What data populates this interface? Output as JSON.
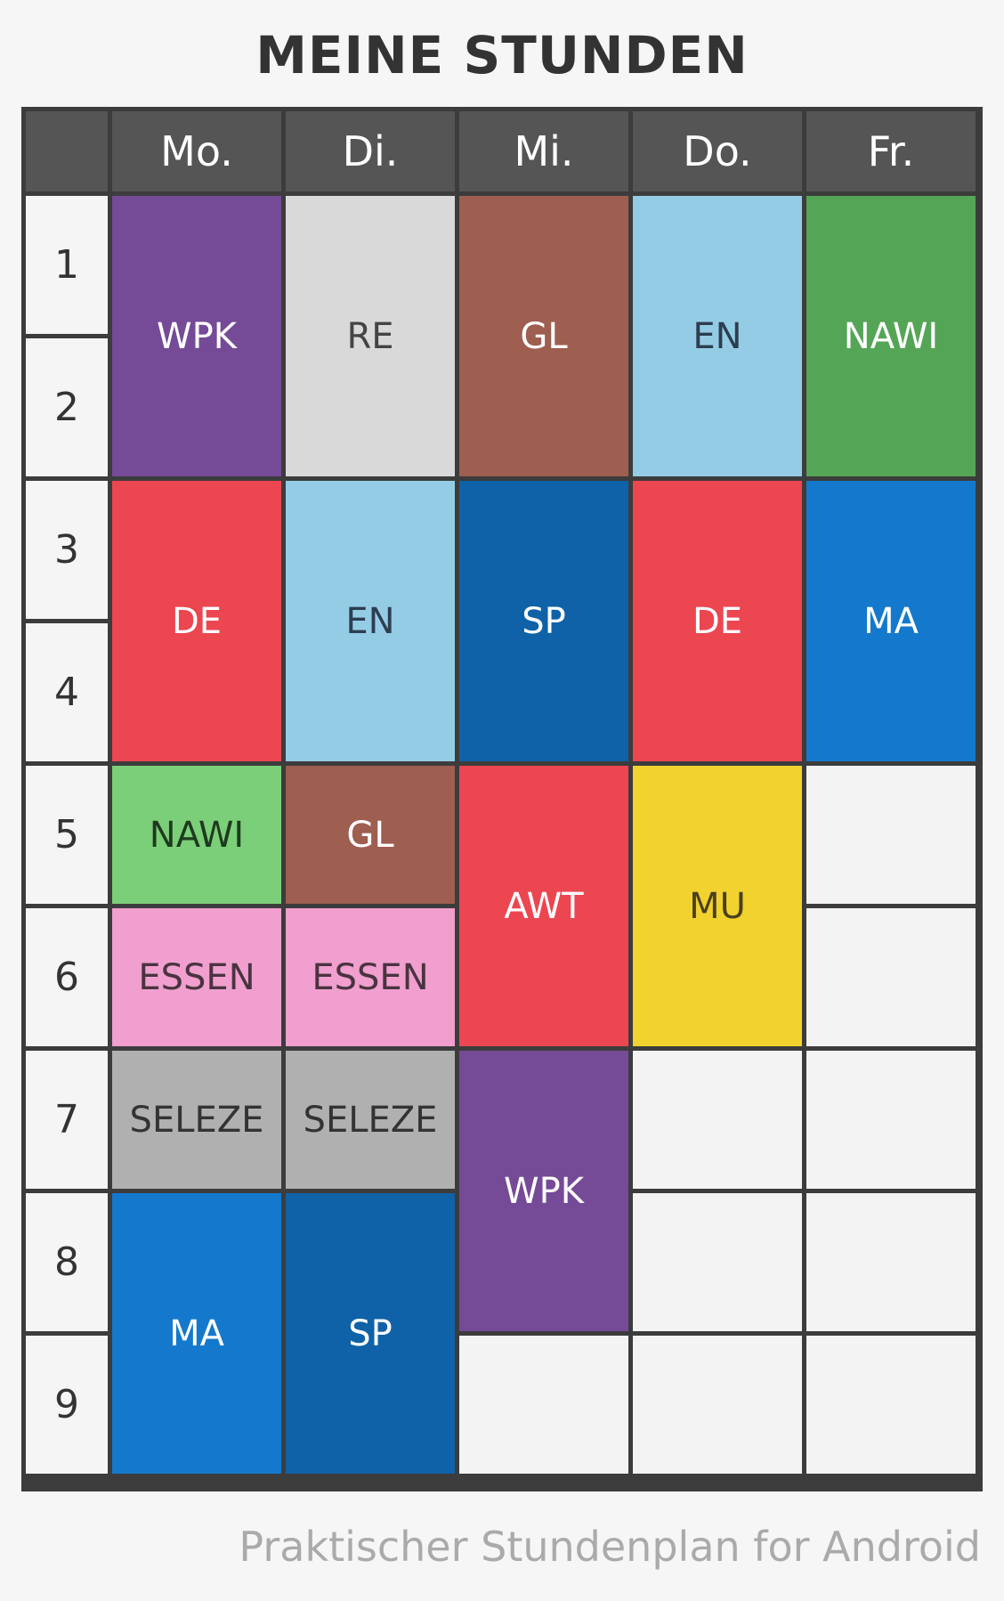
{
  "title": "MEINE STUNDEN",
  "footer": "Praktischer Stundenplan for Android",
  "days": [
    "Mo.",
    "Di.",
    "Mi.",
    "Do.",
    "Fr."
  ],
  "periods": [
    "1",
    "2",
    "3",
    "4",
    "5",
    "6",
    "7",
    "8",
    "9"
  ],
  "colors": {
    "header_bg": "#555555",
    "grid_line": "#3c3c3c",
    "empty_cell": "#f3f3f3"
  },
  "lessons": [
    {
      "subject": "WPK",
      "day": 0,
      "start": 1,
      "span": 2,
      "bg": "#754a97",
      "fg": "#ffffff"
    },
    {
      "subject": "RE",
      "day": 1,
      "start": 1,
      "span": 2,
      "bg": "#d9d9d9",
      "fg": "#444444"
    },
    {
      "subject": "GL",
      "day": 2,
      "start": 1,
      "span": 2,
      "bg": "#9e5e50",
      "fg": "#ffffff"
    },
    {
      "subject": "EN",
      "day": 3,
      "start": 1,
      "span": 2,
      "bg": "#95cce5",
      "fg": "#2c3e50"
    },
    {
      "subject": "NAWI",
      "day": 4,
      "start": 1,
      "span": 2,
      "bg": "#55a556",
      "fg": "#ffffff"
    },
    {
      "subject": "DE",
      "day": 0,
      "start": 3,
      "span": 2,
      "bg": "#ec4651",
      "fg": "#ffffff"
    },
    {
      "subject": "EN",
      "day": 1,
      "start": 3,
      "span": 2,
      "bg": "#95cce5",
      "fg": "#2c3e50"
    },
    {
      "subject": "SP",
      "day": 2,
      "start": 3,
      "span": 2,
      "bg": "#0f62a7",
      "fg": "#ffffff"
    },
    {
      "subject": "DE",
      "day": 3,
      "start": 3,
      "span": 2,
      "bg": "#ec4651",
      "fg": "#ffffff"
    },
    {
      "subject": "MA",
      "day": 4,
      "start": 3,
      "span": 2,
      "bg": "#1479cc",
      "fg": "#ffffff"
    },
    {
      "subject": "NAWI",
      "day": 0,
      "start": 5,
      "span": 1,
      "bg": "#7ccf79",
      "fg": "#1e3a1e"
    },
    {
      "subject": "GL",
      "day": 1,
      "start": 5,
      "span": 1,
      "bg": "#9e5e50",
      "fg": "#ffffff"
    },
    {
      "subject": "AWT",
      "day": 2,
      "start": 5,
      "span": 2,
      "bg": "#ec4651",
      "fg": "#ffffff"
    },
    {
      "subject": "MU",
      "day": 3,
      "start": 5,
      "span": 2,
      "bg": "#f2d22e",
      "fg": "#4a4020"
    },
    {
      "subject": "ESSEN",
      "day": 0,
      "start": 6,
      "span": 1,
      "bg": "#f09fcf",
      "fg": "#4a3340"
    },
    {
      "subject": "ESSEN",
      "day": 1,
      "start": 6,
      "span": 1,
      "bg": "#f09fcf",
      "fg": "#4a3340"
    },
    {
      "subject": "SELEZE",
      "day": 0,
      "start": 7,
      "span": 1,
      "bg": "#b0b0b0",
      "fg": "#333333"
    },
    {
      "subject": "SELEZE",
      "day": 1,
      "start": 7,
      "span": 1,
      "bg": "#b0b0b0",
      "fg": "#333333"
    },
    {
      "subject": "WPK",
      "day": 2,
      "start": 7,
      "span": 2,
      "bg": "#754a97",
      "fg": "#ffffff"
    },
    {
      "subject": "MA",
      "day": 0,
      "start": 8,
      "span": 2,
      "bg": "#1479cc",
      "fg": "#ffffff"
    },
    {
      "subject": "SP",
      "day": 1,
      "start": 8,
      "span": 2,
      "bg": "#0f62a7",
      "fg": "#ffffff"
    }
  ],
  "empty_slots": [
    {
      "day": 4,
      "start": 5,
      "span": 1
    },
    {
      "day": 4,
      "start": 6,
      "span": 1
    },
    {
      "day": 3,
      "start": 7,
      "span": 1
    },
    {
      "day": 4,
      "start": 7,
      "span": 1
    },
    {
      "day": 3,
      "start": 8,
      "span": 1
    },
    {
      "day": 4,
      "start": 8,
      "span": 1
    },
    {
      "day": 2,
      "start": 9,
      "span": 1
    },
    {
      "day": 3,
      "start": 9,
      "span": 1
    },
    {
      "day": 4,
      "start": 9,
      "span": 1
    }
  ]
}
